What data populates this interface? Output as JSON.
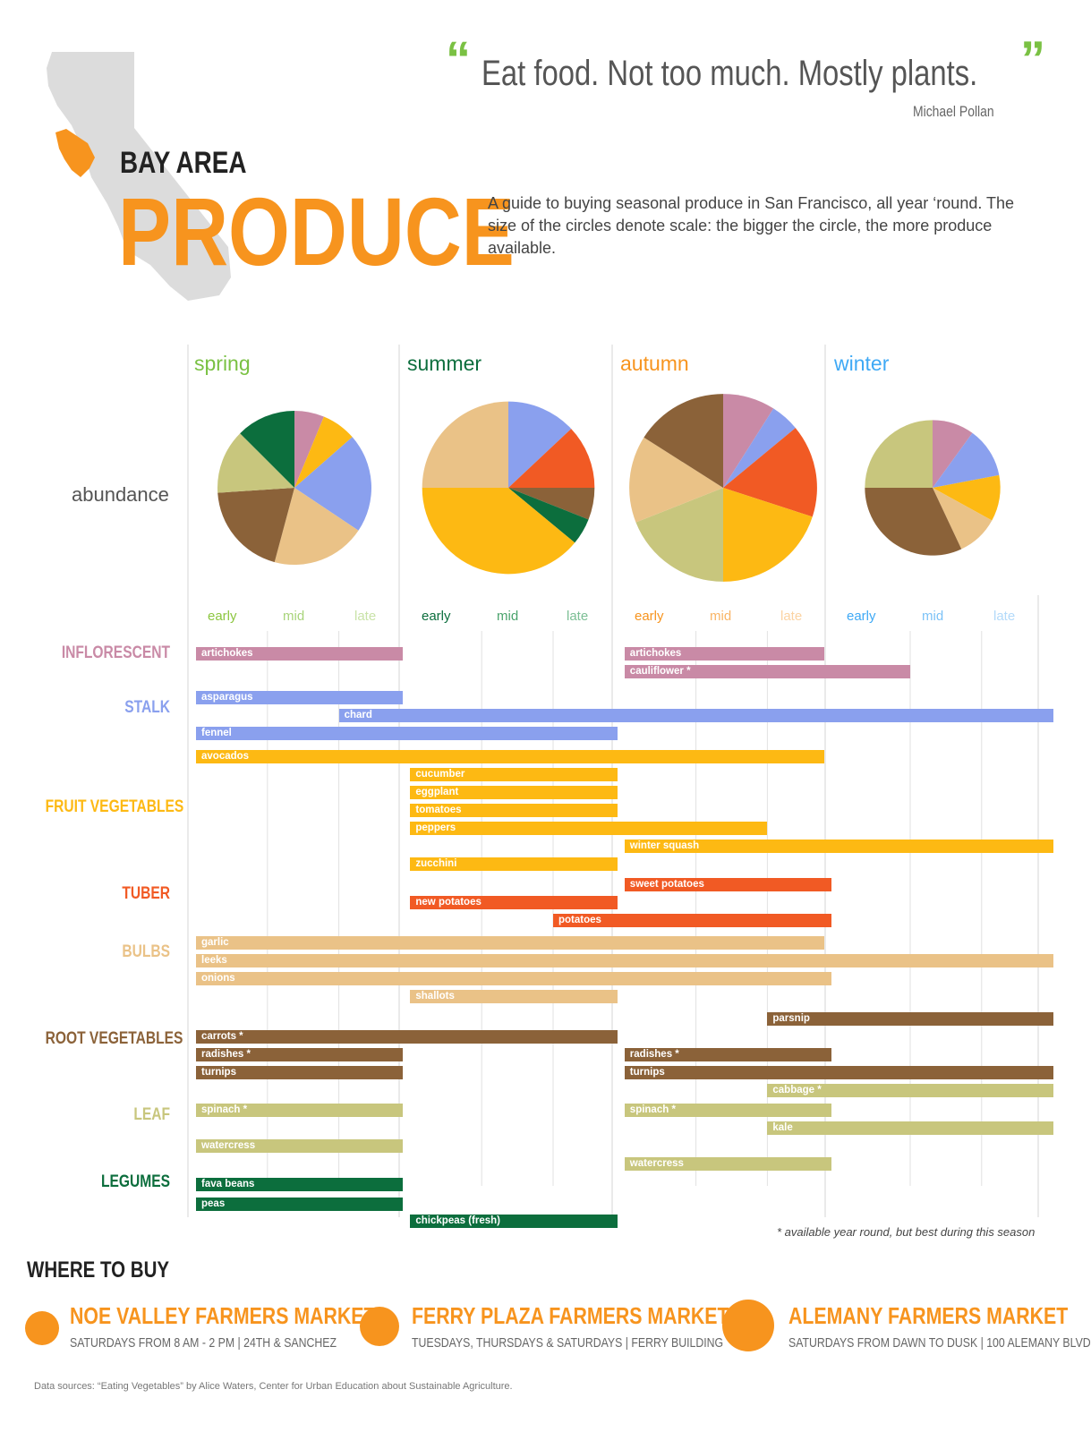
{
  "quote": {
    "open_mark": "“",
    "text": "Eat food. Not too much. Mostly plants.",
    "close_mark": "”",
    "author": "Michael Pollan"
  },
  "header": {
    "title_small": "BAY AREA",
    "title_big": "PRODUCE",
    "intro": "A guide to buying seasonal produce in San Francisco, all year ‘round. The size of the circles denote scale: the bigger the circle, the more produce available."
  },
  "colors": {
    "accent_orange": "#f7941e",
    "quote_green": "#7ac143",
    "map_gray": "#dcdcdc",
    "grid": "#d4d4d4"
  },
  "chart_data": {
    "type": "bar",
    "abundance_label": "abundance",
    "seasons": [
      {
        "name": "spring",
        "color": "#7ac143",
        "phases": [
          "early",
          "mid",
          "late"
        ],
        "phase_colors": [
          "#8cc63f",
          "#a8d47a",
          "#c9e3a8"
        ]
      },
      {
        "name": "summer",
        "color": "#0c6e3d",
        "phases": [
          "early",
          "mid",
          "late"
        ],
        "phase_colors": [
          "#0c6e3d",
          "#4aa36c",
          "#7cbf95"
        ]
      },
      {
        "name": "autumn",
        "color": "#f7941e",
        "phases": [
          "early",
          "mid",
          "late"
        ],
        "phase_colors": [
          "#f7941e",
          "#f9b566",
          "#fbd3a3"
        ]
      },
      {
        "name": "winter",
        "color": "#3fa9f5",
        "phases": [
          "early",
          "mid",
          "late"
        ],
        "phase_colors": [
          "#3fa9f5",
          "#7cc2f7",
          "#b3dafa"
        ]
      }
    ],
    "pies": [
      {
        "season": "spring",
        "scale": 1.0,
        "slices": [
          {
            "category": "inflorescent",
            "value": 6
          },
          {
            "category": "fruit",
            "value": 7
          },
          {
            "category": "stalk",
            "value": 20
          },
          {
            "category": "bulbs",
            "value": 19
          },
          {
            "category": "root",
            "value": 19
          },
          {
            "category": "leaf",
            "value": 13
          },
          {
            "category": "legumes",
            "value": 12
          }
        ]
      },
      {
        "season": "summer",
        "scale": 1.12,
        "slices": [
          {
            "category": "stalk",
            "value": 13
          },
          {
            "category": "tuber",
            "value": 12
          },
          {
            "category": "root",
            "value": 6
          },
          {
            "category": "legumes",
            "value": 5
          },
          {
            "category": "fruit",
            "value": 39
          },
          {
            "category": "bulbs",
            "value": 25
          }
        ]
      },
      {
        "season": "autumn",
        "scale": 1.22,
        "slices": [
          {
            "category": "inflorescent",
            "value": 9
          },
          {
            "category": "stalk",
            "value": 5
          },
          {
            "category": "tuber",
            "value": 16
          },
          {
            "category": "fruit",
            "value": 20
          },
          {
            "category": "leaf",
            "value": 19
          },
          {
            "category": "bulbs",
            "value": 15
          },
          {
            "category": "root",
            "value": 16
          }
        ]
      },
      {
        "season": "winter",
        "scale": 0.88,
        "slices": [
          {
            "category": "inflorescent",
            "value": 10
          },
          {
            "category": "stalk",
            "value": 12
          },
          {
            "category": "fruit",
            "value": 11
          },
          {
            "category": "bulbs",
            "value": 10
          },
          {
            "category": "root",
            "value": 32
          },
          {
            "category": "leaf",
            "value": 25
          }
        ]
      }
    ],
    "x_unit": "season phase (0 = early spring, 12 = end of late winter)",
    "categories": [
      {
        "id": "inflorescent",
        "label": "INFLORESCENT",
        "color": "#c98aa6"
      },
      {
        "id": "stalk",
        "label": "STALK",
        "color": "#8aa0ee"
      },
      {
        "id": "fruit",
        "label": "FRUIT VEGETABLES",
        "color": "#fdb913"
      },
      {
        "id": "tuber",
        "label": "TUBER",
        "color": "#f15a24"
      },
      {
        "id": "bulbs",
        "label": "BULBS",
        "color": "#eac287"
      },
      {
        "id": "root",
        "label": "ROOT VEGETABLES",
        "color": "#8b6239"
      },
      {
        "id": "leaf",
        "label": "LEAF",
        "color": "#c8c67d"
      },
      {
        "id": "legumes",
        "label": "LEGUMES",
        "color": "#0c6e3d"
      }
    ],
    "produce": [
      {
        "name": "artichokes",
        "category": "inflorescent",
        "start": 0,
        "end": 2.9
      },
      {
        "name": "artichokes",
        "category": "inflorescent",
        "start": 6,
        "end": 8.8
      },
      {
        "name": "cauliflower *",
        "category": "inflorescent",
        "start": 6,
        "end": 10
      },
      {
        "name": "asparagus",
        "category": "stalk",
        "start": 0,
        "end": 2.9
      },
      {
        "name": "chard",
        "category": "stalk",
        "start": 2,
        "end": 12
      },
      {
        "name": "fennel",
        "category": "stalk",
        "start": 0,
        "end": 5.9
      },
      {
        "name": "avocados",
        "category": "fruit",
        "start": 0,
        "end": 8.8
      },
      {
        "name": "cucumber",
        "category": "fruit",
        "start": 3,
        "end": 5.9
      },
      {
        "name": "eggplant",
        "category": "fruit",
        "start": 3,
        "end": 5.9
      },
      {
        "name": "tomatoes",
        "category": "fruit",
        "start": 3,
        "end": 5.9
      },
      {
        "name": "peppers",
        "category": "fruit",
        "start": 3,
        "end": 8
      },
      {
        "name": "winter squash",
        "category": "fruit",
        "start": 6,
        "end": 12
      },
      {
        "name": "zucchini",
        "category": "fruit",
        "start": 3,
        "end": 5.9
      },
      {
        "name": "sweet potatoes",
        "category": "tuber",
        "start": 6,
        "end": 8.9
      },
      {
        "name": "new potatoes",
        "category": "tuber",
        "start": 3,
        "end": 5.9
      },
      {
        "name": "potatoes",
        "category": "tuber",
        "start": 5,
        "end": 8.9
      },
      {
        "name": "garlic",
        "category": "bulbs",
        "start": 0,
        "end": 8.8
      },
      {
        "name": "leeks",
        "category": "bulbs",
        "start": 0,
        "end": 12
      },
      {
        "name": "onions",
        "category": "bulbs",
        "start": 0,
        "end": 8.9
      },
      {
        "name": "shallots",
        "category": "bulbs",
        "start": 3,
        "end": 5.9
      },
      {
        "name": "parsnip",
        "category": "root",
        "start": 8,
        "end": 12
      },
      {
        "name": "carrots *",
        "category": "root",
        "start": 0,
        "end": 5.9
      },
      {
        "name": "radishes *",
        "category": "root",
        "start": 0,
        "end": 2.9
      },
      {
        "name": "radishes *",
        "category": "root",
        "start": 6,
        "end": 8.9
      },
      {
        "name": "turnips",
        "category": "root",
        "start": 0,
        "end": 2.9
      },
      {
        "name": "turnips",
        "category": "root",
        "start": 6,
        "end": 12
      },
      {
        "name": "cabbage *",
        "category": "leaf",
        "start": 8,
        "end": 12
      },
      {
        "name": "spinach *",
        "category": "leaf",
        "start": 0,
        "end": 2.9
      },
      {
        "name": "spinach *",
        "category": "leaf",
        "start": 6,
        "end": 8.9
      },
      {
        "name": "kale",
        "category": "leaf",
        "start": 8,
        "end": 12
      },
      {
        "name": "watercress",
        "category": "leaf",
        "start": 0,
        "end": 2.9
      },
      {
        "name": "watercress",
        "category": "leaf",
        "start": 6,
        "end": 8.9
      },
      {
        "name": "fava beans",
        "category": "legumes",
        "start": 0,
        "end": 2.9
      },
      {
        "name": "peas",
        "category": "legumes",
        "start": 0,
        "end": 2.9
      },
      {
        "name": "chickpeas (fresh)",
        "category": "legumes",
        "start": 3,
        "end": 5.9
      }
    ],
    "footnote": "* available year round, but best during this season"
  },
  "where_to_buy": {
    "title": "WHERE TO BUY",
    "markets": [
      {
        "name": "NOE VALLEY FARMERS MARKET",
        "hours": "SATURDAYS FROM 8 AM - 2 PM | 24TH & SANCHEZ"
      },
      {
        "name": "FERRY PLAZA FARMERS MARKET",
        "hours": "TUESDAYS, THURSDAYS & SATURDAYS | FERRY BUILDING"
      },
      {
        "name": "ALEMANY FARMERS MARKET",
        "hours": "SATURDAYS FROM DAWN TO DUSK | 100 ALEMANY BLVD"
      }
    ]
  },
  "sources": "Data sources: “Eating Vegetables” by Alice Waters, Center for Urban Education about Sustainable Agriculture."
}
